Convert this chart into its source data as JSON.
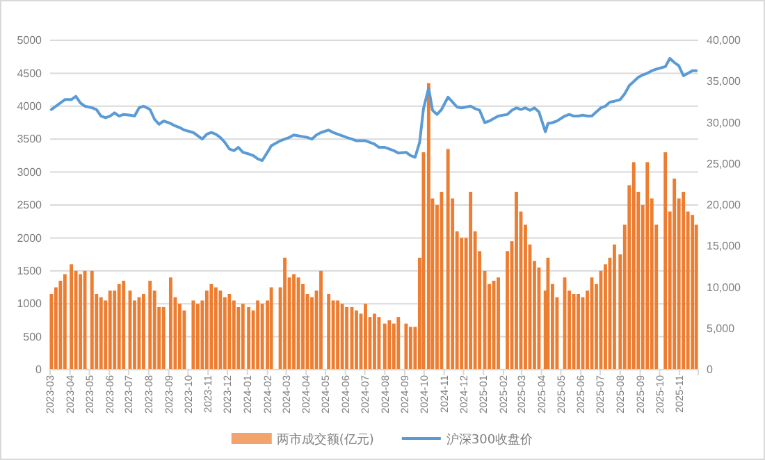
{
  "chart_data": {
    "type": "bar",
    "x": [
      "2023-03-03",
      "2023-03-10",
      "2023-03-17",
      "2023-03-24",
      "2023-04-03",
      "2023-04-10",
      "2023-04-17",
      "2023-04-24",
      "2023-05-05",
      "2023-05-12",
      "2023-05-19",
      "2023-05-26",
      "2023-06-02",
      "2023-06-09",
      "2023-06-16",
      "2023-06-23",
      "2023-07-03",
      "2023-07-10",
      "2023-07-17",
      "2023-07-24",
      "2023-08-03",
      "2023-08-10",
      "2023-08-17",
      "2023-08-24",
      "2023-09-04",
      "2023-09-11",
      "2023-09-18",
      "2023-09-25",
      "2023-10-09",
      "2023-10-16",
      "2023-10-23",
      "2023-10-30",
      "2023-11-06",
      "2023-11-13",
      "2023-11-20",
      "2023-11-27",
      "2023-12-04",
      "2023-12-11",
      "2023-12-18",
      "2023-12-25",
      "2024-01-03",
      "2024-01-10",
      "2024-01-17",
      "2024-01-24",
      "2024-02-01",
      "2024-02-07",
      "2024-02-21",
      "2024-02-28",
      "2024-03-06",
      "2024-03-13",
      "2024-03-20",
      "2024-03-27",
      "2024-04-03",
      "2024-04-10",
      "2024-04-17",
      "2024-04-24",
      "2024-05-06",
      "2024-05-13",
      "2024-05-20",
      "2024-05-27",
      "2024-06-03",
      "2024-06-11",
      "2024-06-18",
      "2024-06-25",
      "2024-07-02",
      "2024-07-09",
      "2024-07-16",
      "2024-07-23",
      "2024-08-01",
      "2024-08-08",
      "2024-08-15",
      "2024-08-22",
      "2024-09-03",
      "2024-09-10",
      "2024-09-17",
      "2024-09-24",
      "2024-09-30",
      "2024-10-08",
      "2024-10-14",
      "2024-10-21",
      "2024-10-28",
      "2024-11-07",
      "2024-11-14",
      "2024-11-21",
      "2024-11-28",
      "2024-12-05",
      "2024-12-12",
      "2024-12-19",
      "2024-12-26",
      "2025-01-03",
      "2025-01-10",
      "2025-01-17",
      "2025-01-24",
      "2025-02-07",
      "2025-02-14",
      "2025-02-21",
      "2025-02-28",
      "2025-03-07",
      "2025-03-14",
      "2025-03-21",
      "2025-03-28",
      "2025-04-07",
      "2025-04-11",
      "2025-04-18",
      "2025-04-25",
      "2025-05-07",
      "2025-05-14",
      "2025-05-21",
      "2025-05-28",
      "2025-06-04",
      "2025-06-11",
      "2025-06-18",
      "2025-06-25",
      "2025-07-02",
      "2025-07-09",
      "2025-07-16",
      "2025-07-23",
      "2025-08-01",
      "2025-08-08",
      "2025-08-15",
      "2025-08-22",
      "2025-08-29",
      "2025-09-05",
      "2025-09-12",
      "2025-09-19",
      "2025-09-26",
      "2025-10-10",
      "2025-10-17",
      "2025-10-24",
      "2025-10-31",
      "2025-11-07",
      "2025-11-14",
      "2025-11-21",
      "2025-11-27"
    ],
    "series": [
      {
        "name": "两市成交额(亿元)",
        "color": "#ed7d31",
        "values": [
          1150,
          1250,
          1350,
          1450,
          1600,
          1500,
          1450,
          1500,
          1500,
          1150,
          1100,
          1050,
          1200,
          1200,
          1300,
          1350,
          1200,
          1050,
          1100,
          1150,
          1350,
          1200,
          950,
          950,
          1400,
          1100,
          1000,
          900,
          1050,
          1000,
          1050,
          1200,
          1300,
          1250,
          1200,
          1100,
          1150,
          1050,
          950,
          1000,
          950,
          900,
          1050,
          1000,
          1050,
          1250,
          1250,
          1700,
          1400,
          1450,
          1400,
          1300,
          1150,
          1100,
          1200,
          1500,
          1150,
          1050,
          1050,
          1000,
          950,
          950,
          900,
          850,
          1000,
          800,
          850,
          800,
          700,
          750,
          700,
          800,
          700,
          650,
          650,
          1700,
          3300,
          4350,
          2600,
          2500,
          2700,
          3350,
          2600,
          2100,
          2000,
          2000,
          2700,
          2100,
          1800,
          1500,
          1300,
          1350,
          1400,
          1800,
          1950,
          2700,
          2400,
          2200,
          1900,
          1650,
          1550,
          1200,
          1700,
          1300,
          1100,
          1400,
          1200,
          1150,
          1150,
          1100,
          1200,
          1400,
          1300,
          1500,
          1600,
          1700,
          1900,
          1750,
          2200,
          2800,
          3150,
          2700,
          2500,
          3150,
          2600,
          2200,
          3300,
          2400,
          2900,
          2600,
          2700,
          2400,
          2350,
          2200
        ]
      },
      {
        "name": "沪深300收盘价",
        "type": "line",
        "axis": "y2",
        "color": "#5b9bd5",
        "values": [
          31600,
          32000,
          32400,
          32800,
          32800,
          33200,
          32400,
          32000,
          31800,
          31600,
          30800,
          30600,
          30800,
          31200,
          30800,
          31000,
          30900,
          30800,
          31800,
          32000,
          31600,
          30400,
          29800,
          30200,
          29900,
          29600,
          29400,
          29100,
          28800,
          28400,
          28000,
          28600,
          28800,
          28600,
          28200,
          27600,
          26800,
          26600,
          27000,
          26400,
          26200,
          26000,
          25600,
          25400,
          26400,
          27200,
          27800,
          28000,
          28200,
          28500,
          28400,
          28300,
          28200,
          28000,
          28500,
          28800,
          29100,
          28800,
          28600,
          28400,
          28200,
          28000,
          27800,
          27800,
          27800,
          27600,
          27400,
          27000,
          27000,
          26800,
          26600,
          26300,
          26400,
          26000,
          25800,
          27600,
          31700,
          34200,
          31500,
          31000,
          31600,
          33100,
          32500,
          31900,
          31800,
          31900,
          32000,
          31700,
          31500,
          30000,
          30200,
          30500,
          30800,
          31000,
          31500,
          31800,
          31600,
          31800,
          31500,
          31800,
          31300,
          28900,
          29900,
          30000,
          30200,
          30800,
          31000,
          30800,
          30800,
          30900,
          30800,
          30800,
          31300,
          31800,
          32000,
          32500,
          32600,
          32800,
          33500,
          34500,
          35000,
          35500,
          35800,
          36000,
          36300,
          36500,
          36800,
          37800,
          37300,
          36900,
          35700,
          36000,
          36300,
          36300
        ]
      }
    ],
    "xlim": [
      "2023-03-01",
      "2025-11-30"
    ],
    "xticks": [
      {
        "value": "2023-03-01",
        "label": "2023-03"
      },
      {
        "value": "2023-04-01",
        "label": "2023-04"
      },
      {
        "value": "2023-05-01",
        "label": "2023-05"
      },
      {
        "value": "2023-06-01",
        "label": "2023-06"
      },
      {
        "value": "2023-07-01",
        "label": "2023-07"
      },
      {
        "value": "2023-08-01",
        "label": "2023-08"
      },
      {
        "value": "2023-09-01",
        "label": "2023-09"
      },
      {
        "value": "2023-10-01",
        "label": "2023-10"
      },
      {
        "value": "2023-11-01",
        "label": "2023-11"
      },
      {
        "value": "2023-12-01",
        "label": "2023-12"
      },
      {
        "value": "2024-01-01",
        "label": "2024-01"
      },
      {
        "value": "2024-02-01",
        "label": "2024-02"
      },
      {
        "value": "2024-03-01",
        "label": "2024-03"
      },
      {
        "value": "2024-04-01",
        "label": "2024-04"
      },
      {
        "value": "2024-05-01",
        "label": "2024-05"
      },
      {
        "value": "2024-06-01",
        "label": "2024-06"
      },
      {
        "value": "2024-07-01",
        "label": "2024-07"
      },
      {
        "value": "2024-08-01",
        "label": "2024-08"
      },
      {
        "value": "2024-09-01",
        "label": "2024-09"
      },
      {
        "value": "2024-10-01",
        "label": "2024-10"
      },
      {
        "value": "2024-11-01",
        "label": "2024-11"
      },
      {
        "value": "2024-12-01",
        "label": "2024-12"
      },
      {
        "value": "2025-01-01",
        "label": "2025-01"
      },
      {
        "value": "2025-02-01",
        "label": "2025-02"
      },
      {
        "value": "2025-03-01",
        "label": "2025-03"
      },
      {
        "value": "2025-04-01",
        "label": "2025-04"
      },
      {
        "value": "2025-05-01",
        "label": "2025-05"
      },
      {
        "value": "2025-06-01",
        "label": "2025-06"
      },
      {
        "value": "2025-07-01",
        "label": "2025-07"
      },
      {
        "value": "2025-08-01",
        "label": "2025-08"
      },
      {
        "value": "2025-09-01",
        "label": "2025-09"
      },
      {
        "value": "2025-10-01",
        "label": "2025-10"
      },
      {
        "value": "2025-11-01",
        "label": "2025-11"
      }
    ],
    "ylim": [
      0,
      5000
    ],
    "yticks": [
      0,
      500,
      1000,
      1500,
      2000,
      2500,
      3000,
      3500,
      4000,
      4500,
      5000
    ],
    "y2lim": [
      0,
      40000
    ],
    "y2ticks": [
      0,
      {
        "value": 5000,
        "label": "5,000"
      },
      {
        "value": 10000,
        "label": "10,000"
      },
      {
        "value": 15000,
        "label": "15,000"
      },
      {
        "value": 20000,
        "label": "20,000"
      },
      {
        "value": 25000,
        "label": "25,000"
      },
      {
        "value": 30000,
        "label": "30,000"
      },
      {
        "value": 35000,
        "label": "35,000"
      },
      {
        "value": 40000,
        "label": "40,000"
      }
    ],
    "grid": "y",
    "legend": "bottom"
  }
}
